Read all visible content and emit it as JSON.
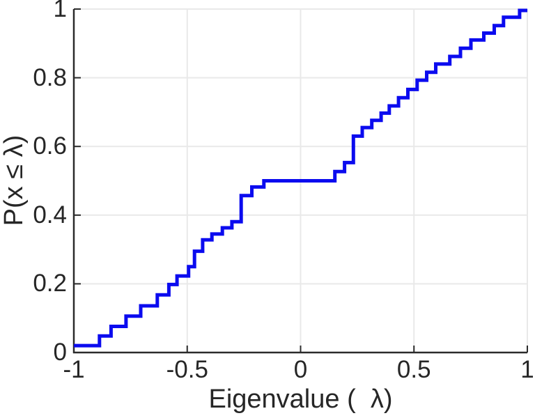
{
  "chart_data": {
    "type": "line",
    "subtype": "ecdf-step",
    "xlabel": "Eigenvalue (  λ)",
    "ylabel": "P(x ≤ λ)",
    "xlim": [
      -1,
      1
    ],
    "ylim": [
      0,
      1
    ],
    "grid": true,
    "legend_position": "none",
    "line_color": "#0b0bef",
    "grid_color": "#e9e9e9",
    "axis_color": "#2b2b2b",
    "text_color": "#262626",
    "background": "#ffffff",
    "x_ticks": [
      {
        "value": -1,
        "label": "-1"
      },
      {
        "value": -0.5,
        "label": "-0.5"
      },
      {
        "value": 0,
        "label": "0"
      },
      {
        "value": 0.5,
        "label": "0.5"
      },
      {
        "value": 1,
        "label": "1"
      }
    ],
    "y_ticks": [
      {
        "value": 0,
        "label": "0"
      },
      {
        "value": 0.2,
        "label": "0.2"
      },
      {
        "value": 0.4,
        "label": "0.4"
      },
      {
        "value": 0.6,
        "label": "0.6"
      },
      {
        "value": 0.8,
        "label": "0.8"
      },
      {
        "value": 1,
        "label": "1"
      }
    ],
    "points_note": "step points: x = eigenvalue (lambda), y = cumulative probability P(x<=lambda) after the jump at that x; line is flat between consecutive x values",
    "points": [
      [
        -1.0,
        0.02
      ],
      [
        -0.887,
        0.048
      ],
      [
        -0.836,
        0.076
      ],
      [
        -0.77,
        0.106
      ],
      [
        -0.705,
        0.136
      ],
      [
        -0.632,
        0.168
      ],
      [
        -0.581,
        0.198
      ],
      [
        -0.545,
        0.223
      ],
      [
        -0.494,
        0.25
      ],
      [
        -0.468,
        0.295
      ],
      [
        -0.432,
        0.328
      ],
      [
        -0.391,
        0.345
      ],
      [
        -0.345,
        0.363
      ],
      [
        -0.303,
        0.381
      ],
      [
        -0.262,
        0.457
      ],
      [
        -0.215,
        0.482
      ],
      [
        -0.162,
        0.5
      ],
      [
        0.151,
        0.527
      ],
      [
        0.194,
        0.553
      ],
      [
        0.233,
        0.63
      ],
      [
        0.272,
        0.655
      ],
      [
        0.314,
        0.676
      ],
      [
        0.355,
        0.697
      ],
      [
        0.391,
        0.718
      ],
      [
        0.432,
        0.742
      ],
      [
        0.473,
        0.766
      ],
      [
        0.514,
        0.793
      ],
      [
        0.556,
        0.816
      ],
      [
        0.596,
        0.84
      ],
      [
        0.658,
        0.862
      ],
      [
        0.705,
        0.886
      ],
      [
        0.751,
        0.91
      ],
      [
        0.808,
        0.93
      ],
      [
        0.854,
        0.952
      ],
      [
        0.895,
        0.976
      ],
      [
        0.966,
        0.996
      ],
      [
        1.0,
        0.996
      ]
    ]
  }
}
